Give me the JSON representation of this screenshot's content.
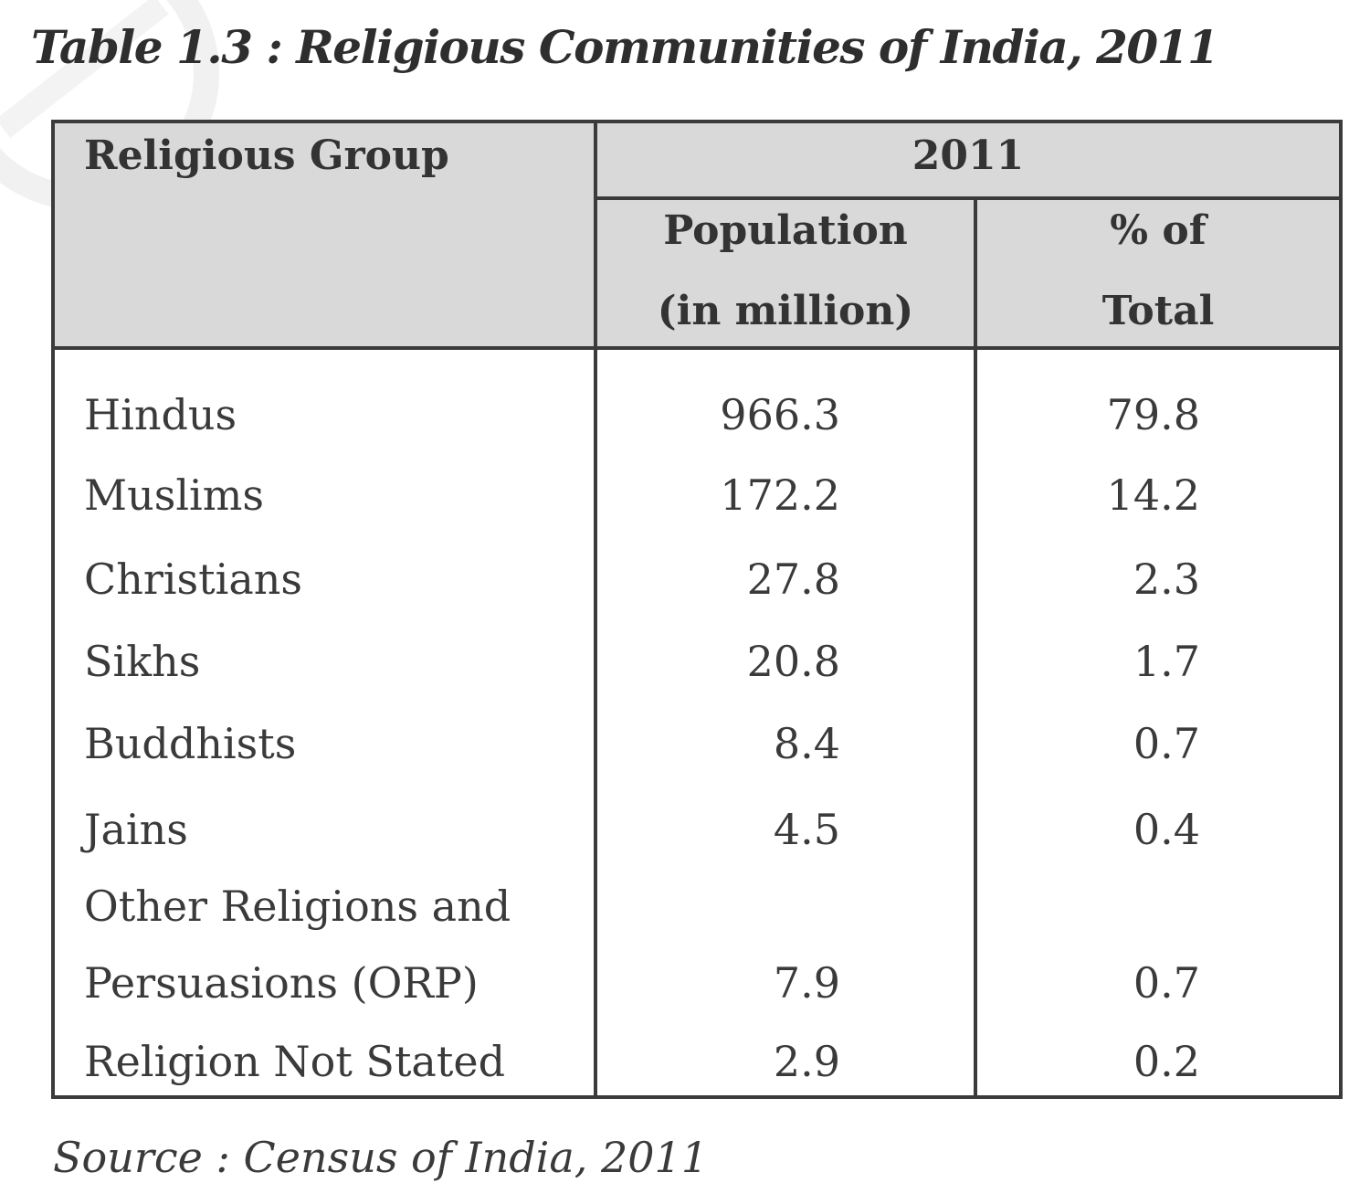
{
  "caption": "Table 1.3 : Religious Communities of India, 2011",
  "header": {
    "group_label": "Religious Group",
    "year_label": "2011",
    "population_line1": "Population",
    "population_line2": "(in million)",
    "percent_line1": "% of",
    "percent_line2": "Total"
  },
  "rows": [
    {
      "name": "Hindus",
      "population": "966.3",
      "percent": "79.8"
    },
    {
      "name": "Muslims",
      "population": "172.2",
      "percent": "14.2"
    },
    {
      "name": "Christians",
      "population": "27.8",
      "percent": "2.3"
    },
    {
      "name": "Sikhs",
      "population": "20.8",
      "percent": "1.7"
    },
    {
      "name": "Buddhists",
      "population": "8.4",
      "percent": "0.7"
    },
    {
      "name": "Jains",
      "population": "4.5",
      "percent": "0.4"
    },
    {
      "name": "Other Religions and",
      "name_line2": "Persuasions (ORP)",
      "population": "7.9",
      "percent": "0.7"
    },
    {
      "name": "Religion Not Stated",
      "population": "2.9",
      "percent": "0.2"
    }
  ],
  "source": "Source : Census of India, 2011"
}
